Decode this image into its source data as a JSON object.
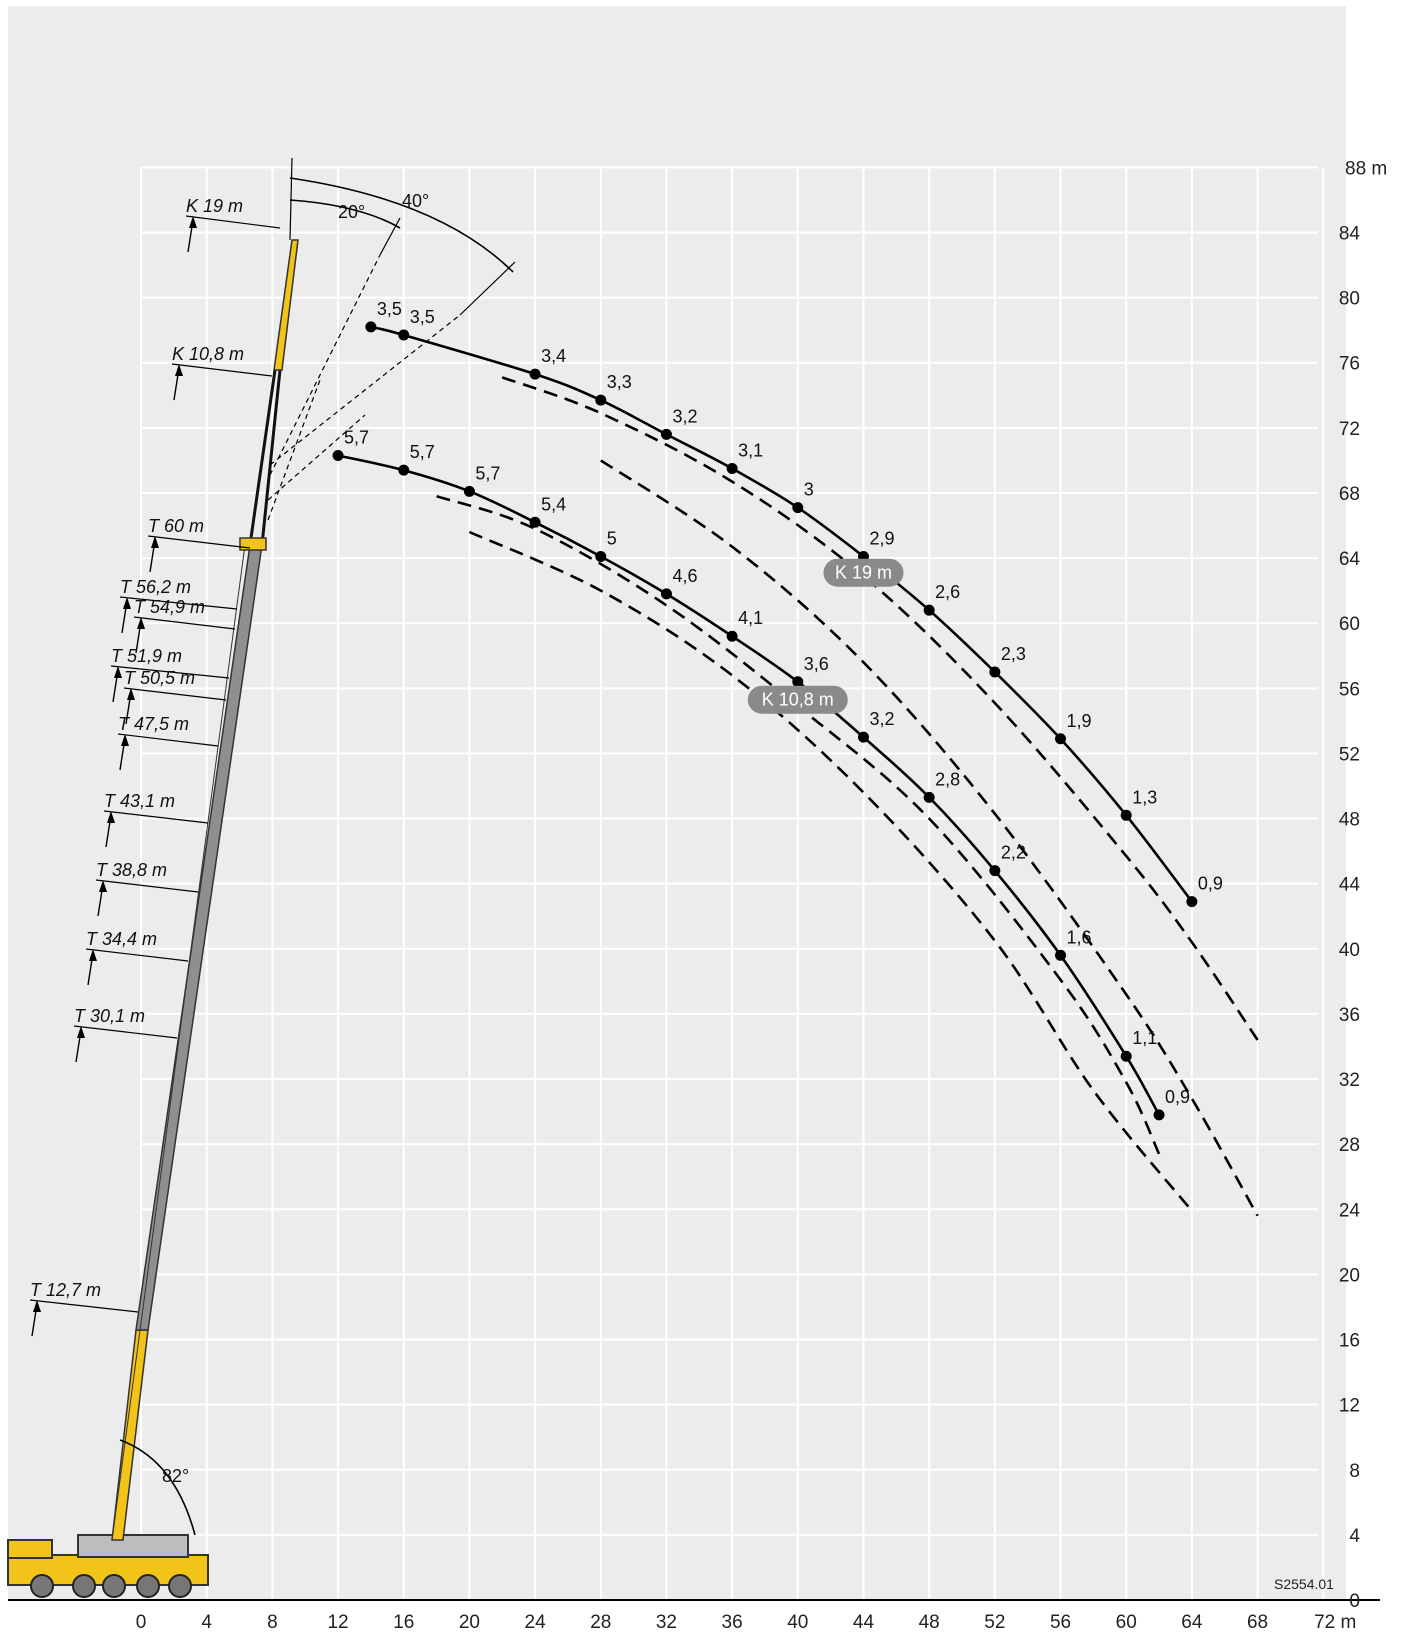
{
  "chart_data": {
    "type": "line",
    "title": "",
    "x_unit": "m",
    "y_unit": "m",
    "xlim": [
      0,
      72
    ],
    "ylim": [
      0,
      88
    ],
    "x_ticks": [
      0,
      4,
      8,
      12,
      16,
      20,
      24,
      28,
      32,
      36,
      40,
      44,
      48,
      52,
      56,
      60,
      64,
      68,
      72
    ],
    "y_ticks": [
      0,
      4,
      8,
      12,
      16,
      20,
      24,
      28,
      32,
      36,
      40,
      44,
      48,
      52,
      56,
      60,
      64,
      68,
      72,
      76,
      80,
      84,
      88
    ],
    "x_tick_labels": [
      "0",
      "4",
      "8",
      "12",
      "16",
      "20",
      "24",
      "28",
      "32",
      "36",
      "40",
      "44",
      "48",
      "52",
      "56",
      "60",
      "64",
      "68",
      "72 m"
    ],
    "y_tick_labels": [
      "0",
      "4",
      "8",
      "12",
      "16",
      "20",
      "24",
      "28",
      "32",
      "36",
      "40",
      "44",
      "48",
      "52",
      "56",
      "60",
      "64",
      "68",
      "72",
      "76",
      "80",
      "84",
      "88  m"
    ],
    "grid": true,
    "series": [
      {
        "name": "K 19 m",
        "points": [
          {
            "x": 14,
            "y": 78.2,
            "label": "3,5"
          },
          {
            "x": 16,
            "y": 77.7,
            "label": "3,5"
          },
          {
            "x": 24,
            "y": 75.3,
            "label": "3,4"
          },
          {
            "x": 28,
            "y": 73.7,
            "label": "3,3"
          },
          {
            "x": 32,
            "y": 71.6,
            "label": "3,2"
          },
          {
            "x": 36,
            "y": 69.5,
            "label": "3,1"
          },
          {
            "x": 40,
            "y": 67.1,
            "label": "3"
          },
          {
            "x": 44,
            "y": 64.1,
            "label": "2,9"
          },
          {
            "x": 48,
            "y": 60.8,
            "label": "2,6"
          },
          {
            "x": 52,
            "y": 57.0,
            "label": "2,3"
          },
          {
            "x": 56,
            "y": 52.9,
            "label": "1,9"
          },
          {
            "x": 60,
            "y": 48.2,
            "label": "1,3"
          },
          {
            "x": 64,
            "y": 42.9,
            "label": "0,9"
          }
        ]
      },
      {
        "name": "K 10,8 m",
        "points": [
          {
            "x": 12,
            "y": 70.3,
            "label": "5,7"
          },
          {
            "x": 16,
            "y": 69.4,
            "label": "5,7"
          },
          {
            "x": 20,
            "y": 68.1,
            "label": "5,7"
          },
          {
            "x": 24,
            "y": 66.2,
            "label": "5,4"
          },
          {
            "x": 28,
            "y": 64.1,
            "label": "5"
          },
          {
            "x": 32,
            "y": 61.8,
            "label": "4,6"
          },
          {
            "x": 36,
            "y": 59.2,
            "label": "4,1"
          },
          {
            "x": 40,
            "y": 56.4,
            "label": "3,6"
          },
          {
            "x": 44,
            "y": 53.0,
            "label": "3,2"
          },
          {
            "x": 48,
            "y": 49.3,
            "label": "2,8"
          },
          {
            "x": 52,
            "y": 44.8,
            "label": "2,2"
          },
          {
            "x": 56,
            "y": 39.6,
            "label": "1,6"
          },
          {
            "x": 60,
            "y": 33.4,
            "label": "1,1"
          },
          {
            "x": 62,
            "y": 29.8,
            "label": "0,9"
          }
        ]
      }
    ],
    "offset_curves": [
      {
        "name": "K 19 m 20°",
        "points": [
          [
            22,
            75.1
          ],
          [
            28,
            72.9
          ],
          [
            36,
            68.7
          ],
          [
            44,
            62.9
          ],
          [
            52,
            55.1
          ],
          [
            60,
            45.7
          ],
          [
            64,
            40.4
          ],
          [
            68,
            34.4
          ]
        ]
      },
      {
        "name": "K 19 m 40°",
        "points": [
          [
            28,
            70.0
          ],
          [
            36,
            64.7
          ],
          [
            44,
            57.6
          ],
          [
            52,
            48.3
          ],
          [
            60,
            37.2
          ],
          [
            64,
            30.8
          ],
          [
            68,
            23.6
          ]
        ]
      },
      {
        "name": "K 10,8 m 20°",
        "points": [
          [
            18,
            67.8
          ],
          [
            24,
            65.8
          ],
          [
            32,
            61.1
          ],
          [
            40,
            54.9
          ],
          [
            48,
            48.0
          ],
          [
            56,
            38.1
          ],
          [
            60,
            31.8
          ],
          [
            62,
            27.4
          ]
        ]
      },
      {
        "name": "K 10,8 m 40°",
        "points": [
          [
            20,
            65.6
          ],
          [
            28,
            62.0
          ],
          [
            36,
            56.8
          ],
          [
            44,
            49.6
          ],
          [
            52,
            40.5
          ],
          [
            58,
            31.3
          ],
          [
            64,
            23.9
          ]
        ]
      }
    ],
    "series_labels": [
      {
        "text": "K 19 m",
        "x": 44,
        "y": 63.1
      },
      {
        "text": "K 10,8 m",
        "x": 40,
        "y": 55.3
      }
    ],
    "boom_sections": [
      "K 19 m",
      "K 10,8 m",
      "T 60 m",
      "T 56,2 m",
      "T 54,9 m",
      "T 51,9 m",
      "T 50,5 m",
      "T 47,5 m",
      "T 43,1 m",
      "T 38,8 m",
      "T 34,4 m",
      "T 30,1 m",
      "T 12,7 m"
    ],
    "angles": [
      "40°",
      "20°",
      "82°"
    ],
    "drawing_code": "S2554.01"
  }
}
